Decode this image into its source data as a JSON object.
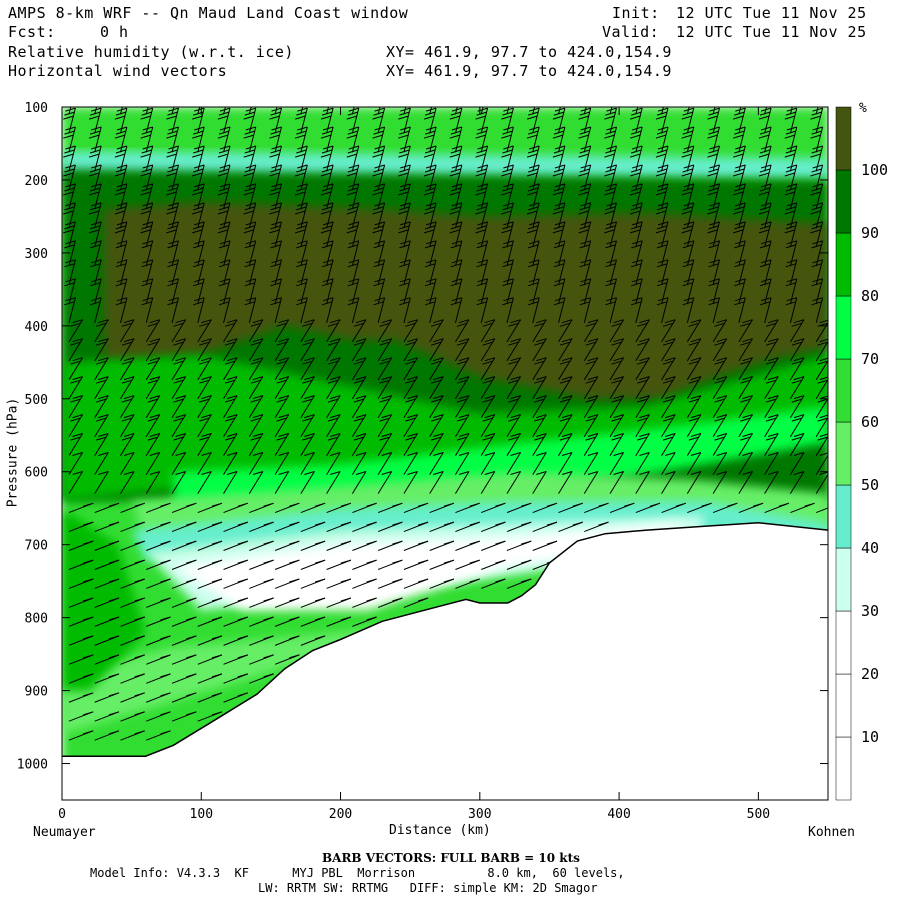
{
  "header": {
    "title": "AMPS 8-km WRF -- Qn Maud Land Coast window",
    "fcst_label": "Fcst:",
    "fcst_value": "0 h",
    "field1": "Relative humidity (w.r.t. ice)",
    "field2": "Horizontal wind vectors",
    "xy1": "XY= 461.9, 97.7 to 424.0,154.9",
    "xy2": "XY= 461.9, 97.7 to 424.0,154.9",
    "init_label": "Init:",
    "init_value": "12 UTC Tue 11 Nov 25",
    "valid_label": "Valid:",
    "valid_value": "12 UTC Tue 11 Nov 25"
  },
  "footer": {
    "barb_note": "BARB VECTORS: FULL BARB = 10 kts",
    "model_info": "Model Info: V4.3.3  KF      MYJ PBL  Morrison          8.0 km,  60 levels,",
    "physics": "LW: RRTM SW: RRTMG   DIFF: simple KM: 2D Smagor"
  },
  "colors": {
    "band_0_10": "#ffffff",
    "band_10_20": "#ffffff",
    "band_20_30": "#ffffff",
    "band_30_40": "#ccffee",
    "band_40_50": "#66eecc",
    "band_50_60": "#66ee66",
    "band_60_70": "#33dd33",
    "band_70_80": "#00ff44",
    "band_80_90": "#00bb00",
    "band_90_100": "#007700",
    "band_100_plus": "#445511",
    "wind_barbs": "#000000",
    "terrain_line": "#000000"
  },
  "chart_data": {
    "type": "heatmap",
    "title": "Relative humidity (w.r.t. ice)",
    "overlay": "Horizontal wind vectors (barbs)",
    "xlabel": "Distance (km)",
    "ylabel": "Pressure (hPa)",
    "xlim": [
      0,
      550
    ],
    "ylim": [
      1050,
      100
    ],
    "x_ticks": [
      0,
      100,
      200,
      300,
      400,
      500
    ],
    "y_ticks": [
      100,
      200,
      300,
      400,
      500,
      600,
      700,
      800,
      900,
      1000
    ],
    "x_endpoints": {
      "left": "Neumayer",
      "right": "Kohnen"
    },
    "colorbar": {
      "unit": "%",
      "levels": [
        10,
        20,
        30,
        40,
        50,
        60,
        70,
        80,
        90,
        100
      ],
      "labels": [
        "10",
        "20",
        "30",
        "40",
        "50",
        "60",
        "70",
        "80",
        "90",
        "100"
      ]
    },
    "terrain_surface": {
      "x": [
        0,
        20,
        60,
        80,
        110,
        140,
        160,
        180,
        200,
        230,
        260,
        290,
        300,
        320,
        330,
        340,
        350,
        370,
        390,
        420,
        460,
        500,
        550
      ],
      "p": [
        990,
        990,
        990,
        975,
        940,
        905,
        870,
        845,
        830,
        805,
        790,
        775,
        780,
        780,
        770,
        755,
        725,
        695,
        685,
        680,
        675,
        670,
        680
      ]
    },
    "rh_regions": [
      {
        "rh": 95,
        "desc": "moist layer below tropopause",
        "x": [
          0,
          550
        ],
        "p": [
          180,
          260
        ]
      },
      {
        "rh": 102,
        "desc": "supersaturated upper core",
        "x": [
          30,
          550
        ],
        "p": [
          250,
          500
        ]
      },
      {
        "rh": 85,
        "desc": "mid troposphere",
        "x": [
          0,
          550
        ],
        "p": [
          450,
          640
        ]
      },
      {
        "rh": 20,
        "desc": "dry low-level air above slope",
        "x": [
          60,
          460
        ],
        "p": [
          640,
          800
        ]
      },
      {
        "rh": 65,
        "desc": "near-surface moist layer",
        "x": [
          0,
          550
        ],
        "p": [
          800,
          990
        ]
      }
    ],
    "barb_full_kts": 10
  }
}
